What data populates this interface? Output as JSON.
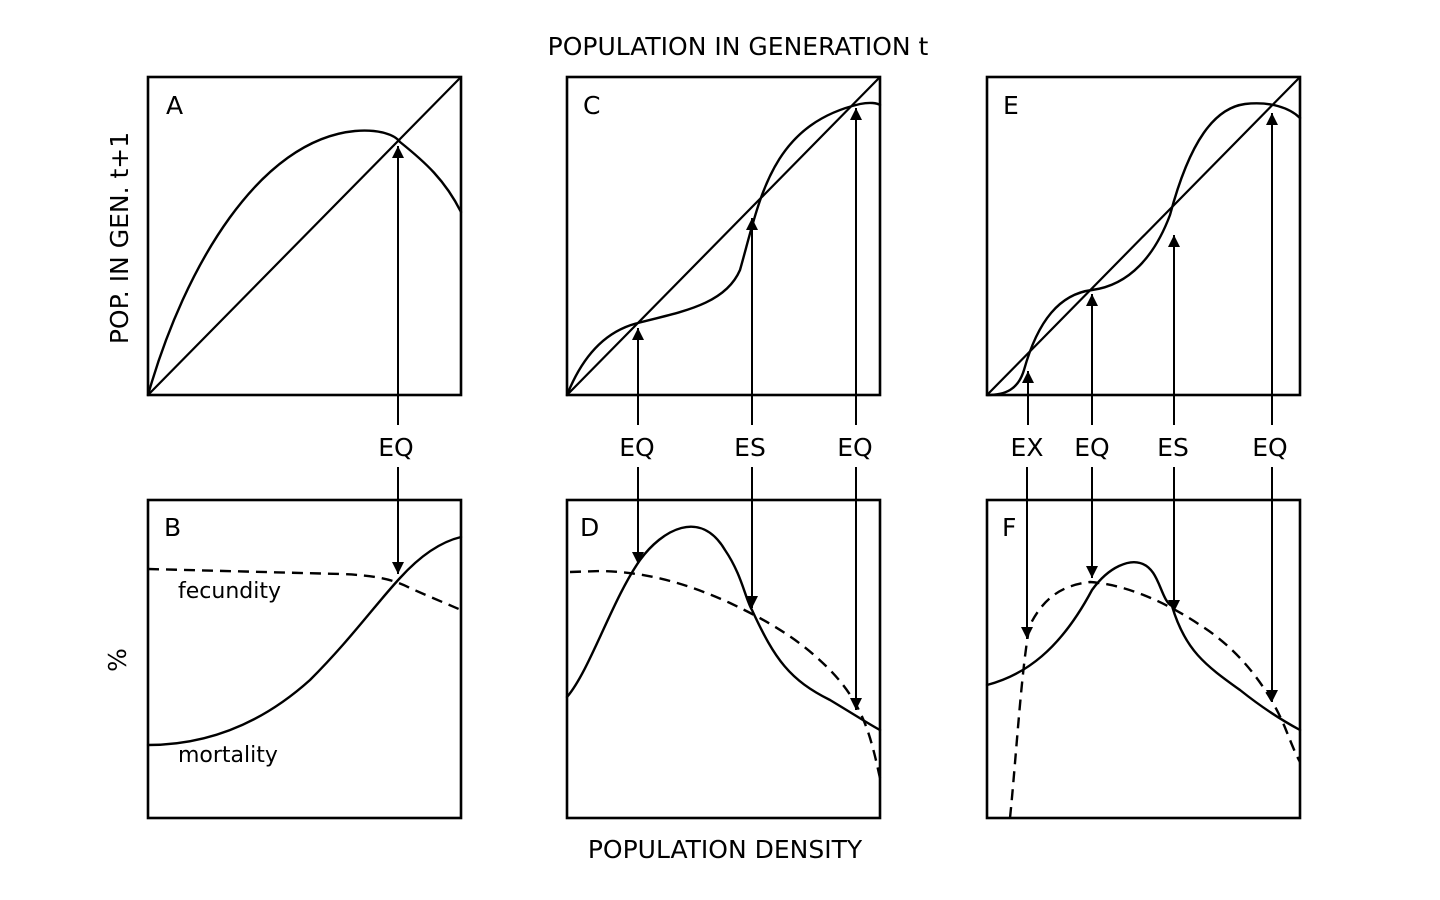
{
  "figure": {
    "top_title": "POPULATION IN GENERATION t",
    "y_label_top": "POP. IN GEN. t+1",
    "y_label_bottom": "%",
    "bottom_title": "POPULATION DENSITY"
  },
  "panels": {
    "A": "A",
    "B": "B",
    "C": "C",
    "D": "D",
    "E": "E",
    "F": "F"
  },
  "curve_labels": {
    "fecundity": "fecundity",
    "mortality": "mortality"
  },
  "markers": {
    "a_eq": "EQ",
    "c_eq1": "EQ",
    "c_es": "ES",
    "c_eq2": "EQ",
    "e_ex": "EX",
    "e_eq1": "EQ",
    "e_es": "ES",
    "e_eq2": "EQ"
  },
  "colors": {
    "ink": "#000000",
    "background": "#ffffff"
  }
}
